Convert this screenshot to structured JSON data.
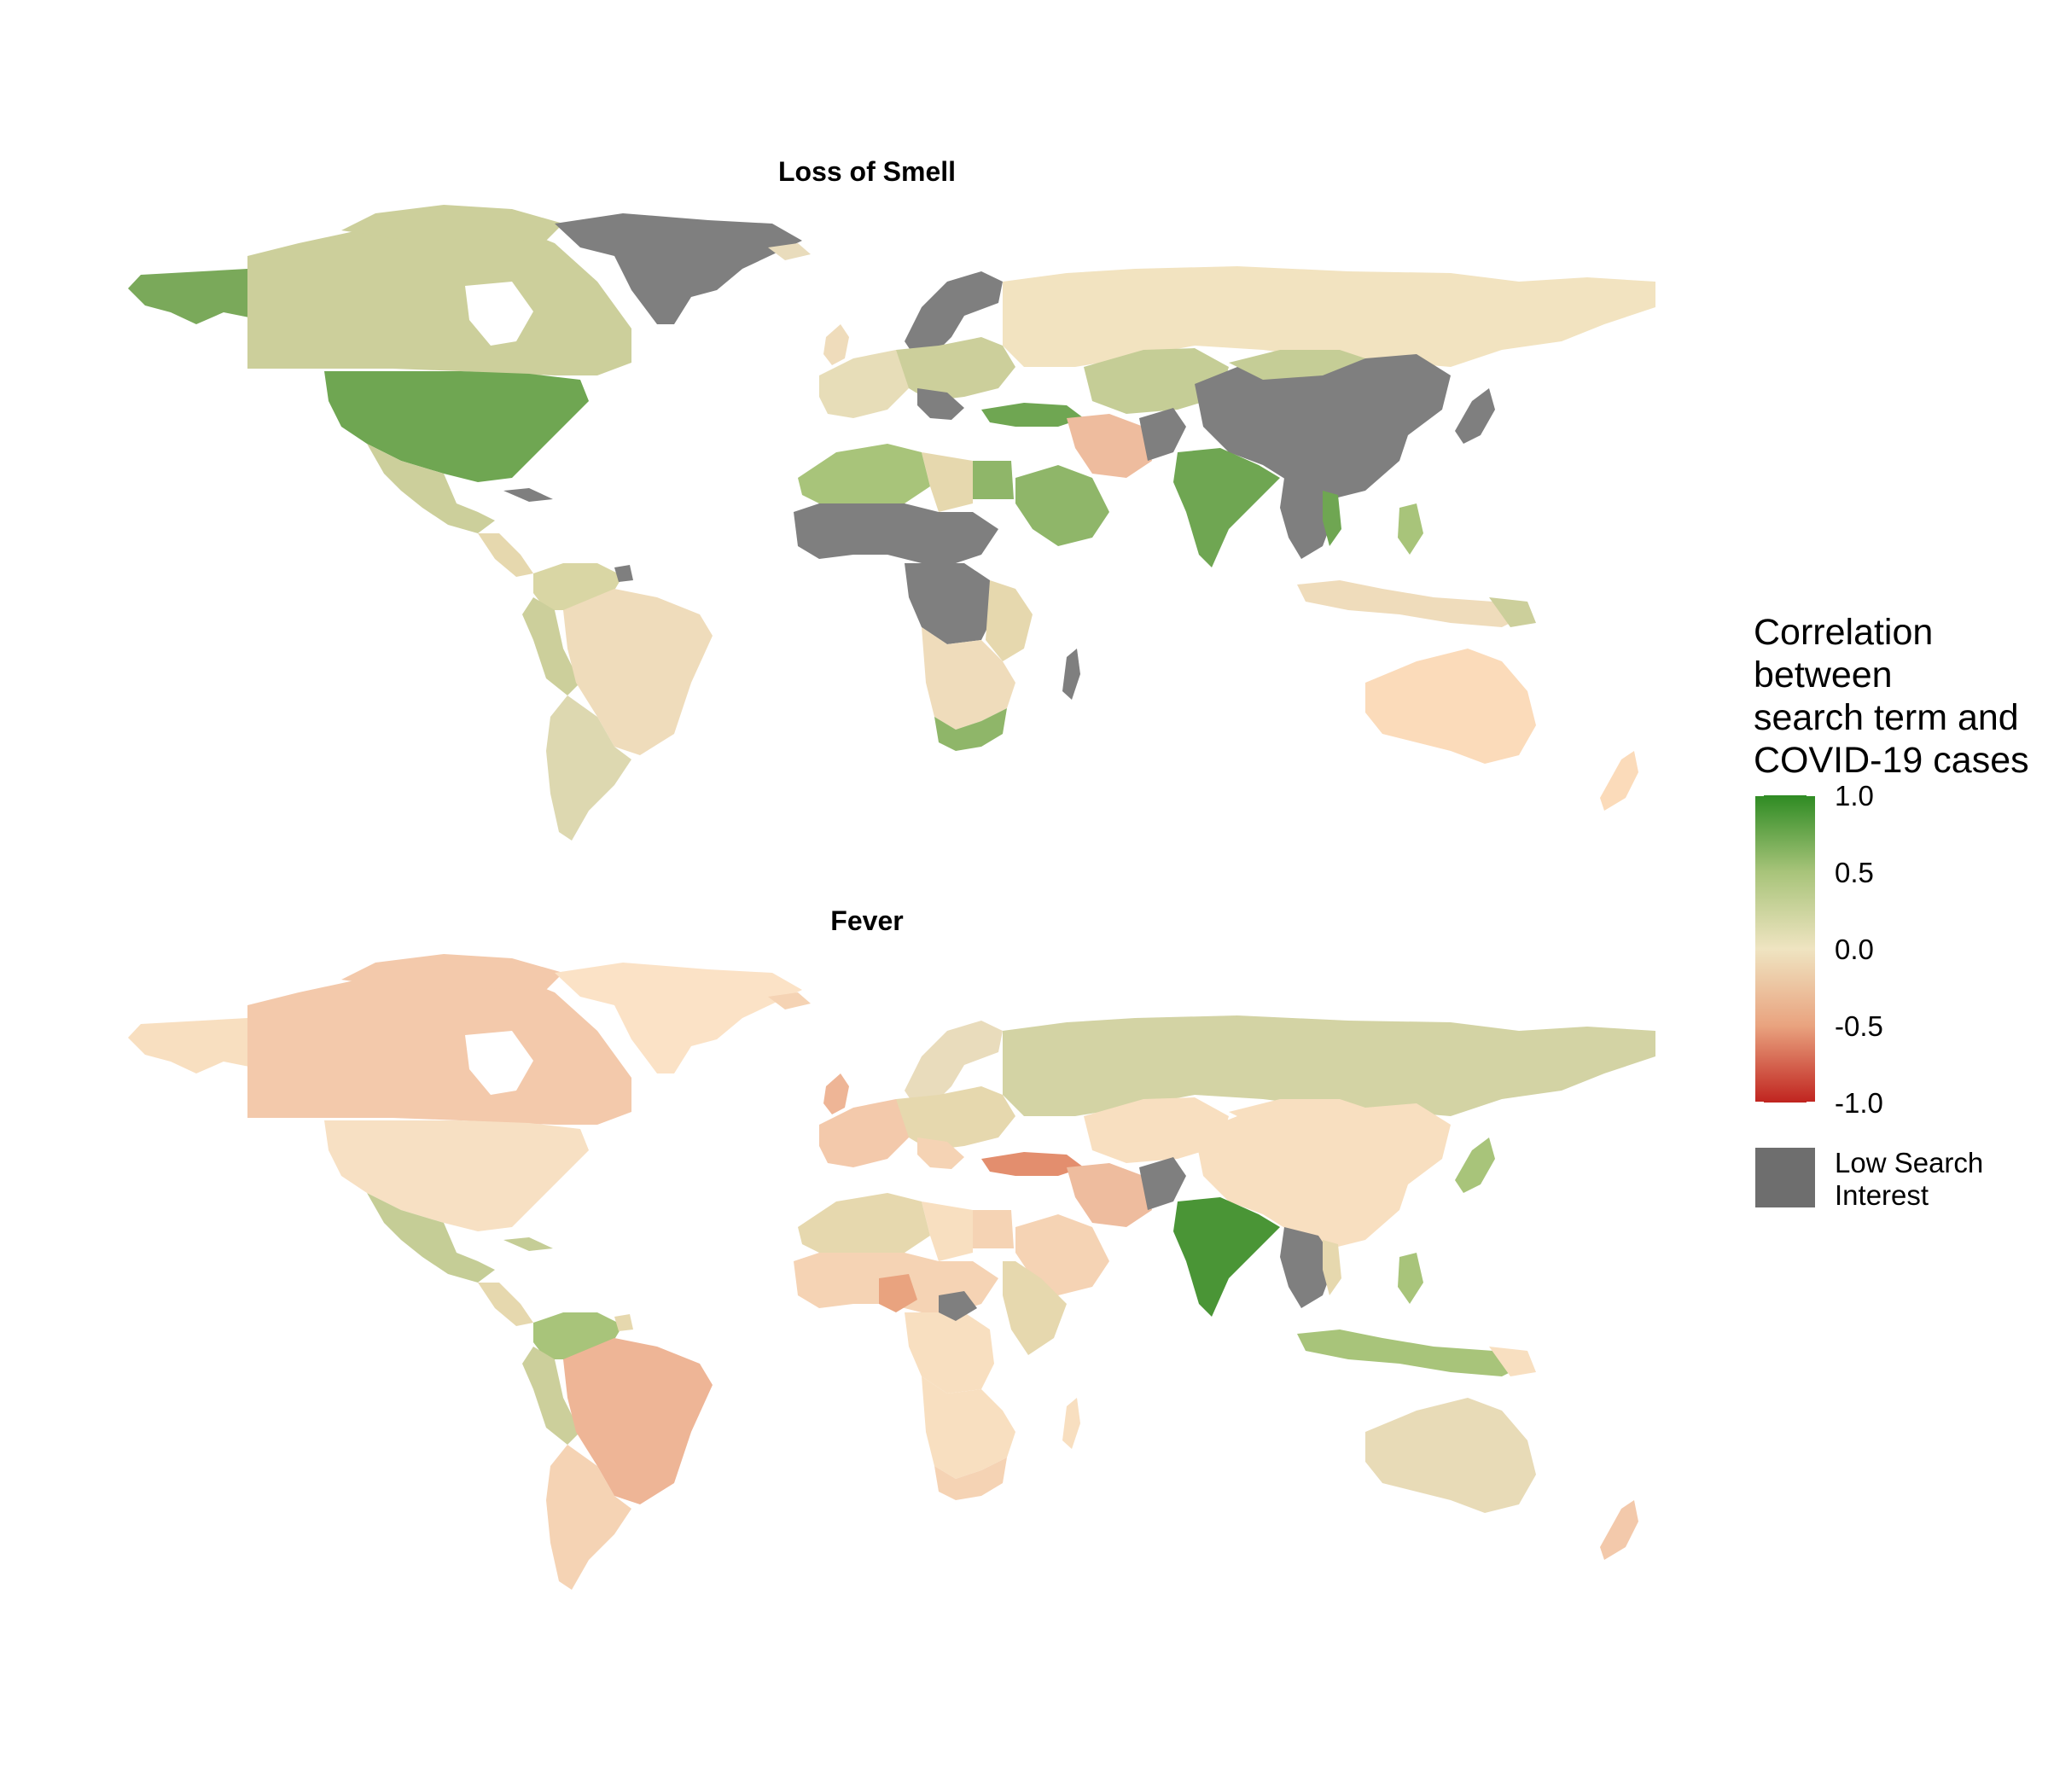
{
  "figure": {
    "panels": [
      {
        "id": "smell",
        "title": "Loss of Smell"
      },
      {
        "id": "fever",
        "title": "Fever"
      }
    ]
  },
  "legend": {
    "title_lines": [
      "Correlation",
      "between",
      "search term and",
      "COVID-19 cases"
    ],
    "ticks": [
      {
        "value": 1.0,
        "label": "1.0"
      },
      {
        "value": 0.5,
        "label": "0.5"
      },
      {
        "value": 0.0,
        "label": "0.0"
      },
      {
        "value": -0.5,
        "label": "-0.5"
      },
      {
        "value": -1.0,
        "label": "-1.0"
      }
    ],
    "na_label_lines": [
      "Low Search",
      "Interest"
    ],
    "gradient_stops": [
      {
        "value": 1.0,
        "color": "#2e8b23"
      },
      {
        "value": 0.5,
        "color": "#a8c47a"
      },
      {
        "value": 0.0,
        "color": "#efe4c1"
      },
      {
        "value": -0.5,
        "color": "#e9a37f"
      },
      {
        "value": -1.0,
        "color": "#c0241f"
      }
    ],
    "na_color": "#6e6e6e"
  },
  "colors": {
    "background": "#ffffff",
    "low_search_interest": "#7f7f7f"
  }
}
